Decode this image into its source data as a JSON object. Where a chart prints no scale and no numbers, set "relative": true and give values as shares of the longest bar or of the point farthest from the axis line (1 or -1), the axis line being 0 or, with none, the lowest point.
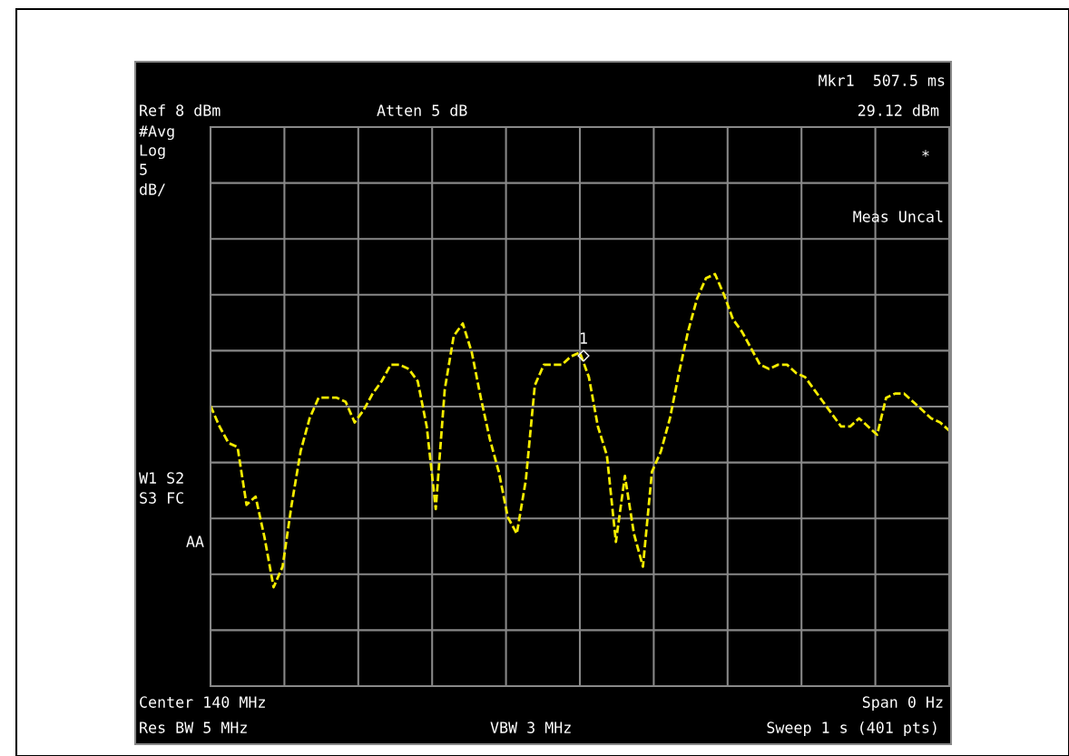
{
  "chart_data": {
    "type": "line",
    "relative": true,
    "grid": true,
    "tick_labels": false,
    "line_style": "dashed",
    "categories": [
      null,
      null,
      null,
      null,
      null,
      null,
      null,
      null,
      null,
      null,
      null,
      null,
      null,
      null,
      null,
      null,
      null,
      null,
      null,
      null,
      null,
      null,
      null,
      null,
      null,
      null,
      null,
      null,
      null,
      null,
      null,
      null,
      null,
      null,
      null,
      null,
      null,
      null,
      null,
      null,
      null,
      null,
      null,
      null,
      null,
      null,
      null,
      null,
      null,
      null,
      null,
      null,
      null,
      null,
      null,
      null,
      null,
      null,
      null,
      null,
      null,
      null,
      null,
      null,
      null,
      null,
      null,
      null,
      null,
      null,
      null,
      null,
      null,
      null,
      null,
      null,
      null,
      null,
      null,
      null,
      null,
      null,
      null
    ],
    "series": [
      {
        "color": "#f5ec00",
        "values": [
          0.68,
          0.63,
          0.59,
          0.58,
          0.44,
          0.46,
          0.36,
          0.24,
          0.29,
          0.44,
          0.57,
          0.65,
          0.7,
          0.7,
          0.7,
          0.69,
          0.64,
          0.67,
          0.71,
          0.74,
          0.78,
          0.78,
          0.77,
          0.74,
          0.63,
          0.43,
          0.72,
          0.85,
          0.88,
          0.81,
          0.7,
          0.6,
          0.52,
          0.41,
          0.37,
          0.5,
          0.73,
          0.78,
          0.78,
          0.78,
          0.8,
          0.81,
          0.75,
          0.63,
          0.56,
          0.35,
          0.51,
          0.37,
          0.29,
          0.52,
          0.57,
          0.65,
          0.76,
          0.86,
          0.94,
          0.99,
          1.0,
          0.95,
          0.89,
          0.86,
          0.82,
          0.78,
          0.77,
          0.78,
          0.78,
          0.76,
          0.75,
          0.72,
          0.69,
          0.66,
          0.63,
          0.63,
          0.65,
          0.63,
          0.61,
          0.7,
          0.71,
          0.71,
          0.69,
          0.67,
          0.65,
          0.64,
          0.62
        ]
      }
    ],
    "annotations": [
      "Ref 8 dBm",
      "Atten 5 dB",
      "Mkr1  507.5 ms",
      "29.12 dBm",
      "#Avg",
      "Log",
      "5",
      "dB/",
      "*",
      "Meas Uncal",
      "W1 S2",
      "S3 FC",
      "AA",
      "Center 140 MHz",
      "Span 0 Hz",
      "Res BW 5 MHz",
      "VBW 3 MHz",
      "Sweep 1 s (401 pts)",
      "1"
    ]
  }
}
